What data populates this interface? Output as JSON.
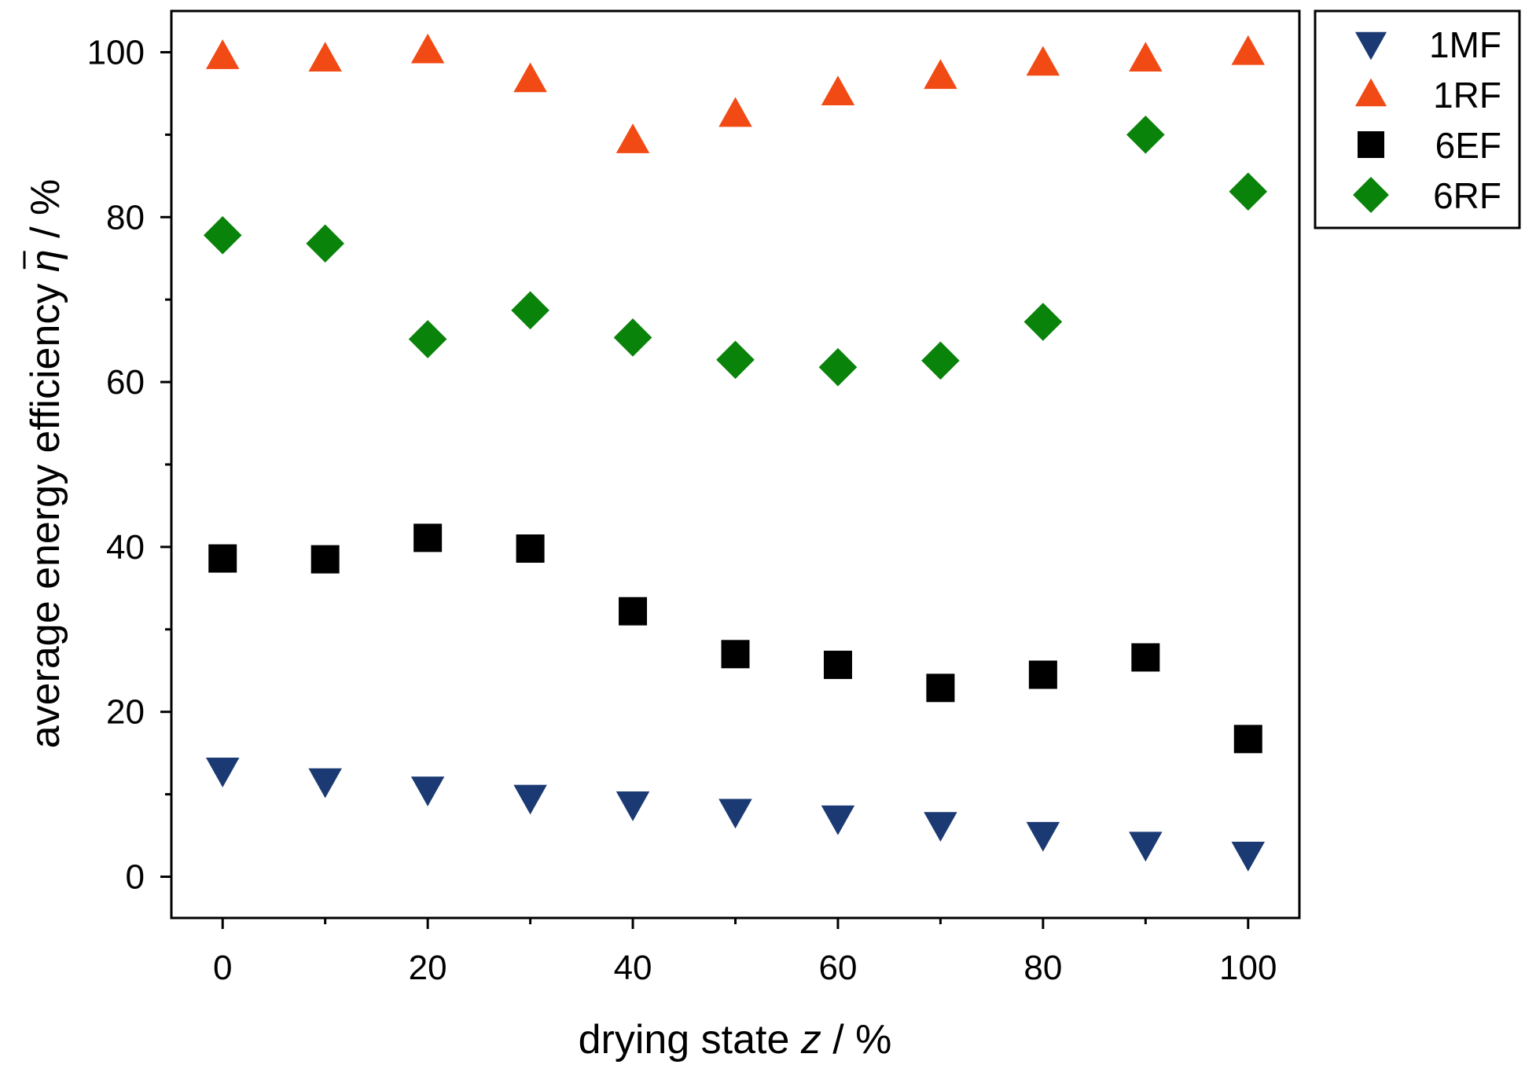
{
  "chart_data": {
    "type": "scatter",
    "title": "",
    "xlabel": {
      "prefix": "drying state ",
      "var": "z",
      "suffix": " / %"
    },
    "ylabel": {
      "prefix": "average energy efficiency ",
      "var": "η",
      "suffix": " / %"
    },
    "xlim": [
      -5,
      105
    ],
    "ylim": [
      -5,
      105
    ],
    "x_ticks": [
      0,
      20,
      40,
      60,
      80,
      100
    ],
    "x_tick_labels": [
      "0",
      "20",
      "40",
      "60",
      "80",
      "100"
    ],
    "x_minor_ticks": [
      10,
      30,
      50,
      70,
      90
    ],
    "y_ticks": [
      0,
      20,
      40,
      60,
      80,
      100
    ],
    "y_tick_labels": [
      "0",
      "20",
      "40",
      "60",
      "80",
      "100"
    ],
    "y_minor_ticks": [
      10,
      30,
      50,
      70,
      90
    ],
    "grid": false,
    "legend_position": "outside-top-right",
    "series": [
      {
        "name": "1MF",
        "marker": "triangle-down",
        "color": "#1b3a73",
        "x": [
          0,
          10,
          20,
          30,
          40,
          50,
          60,
          70,
          80,
          90,
          100
        ],
        "y": [
          12.9,
          11.6,
          10.6,
          9.6,
          8.8,
          7.9,
          7.1,
          6.3,
          5.1,
          3.9,
          2.7
        ]
      },
      {
        "name": "1RF",
        "marker": "triangle-up",
        "color": "#f24a14",
        "x": [
          0,
          10,
          20,
          30,
          40,
          50,
          60,
          70,
          80,
          90,
          100
        ],
        "y": [
          99.5,
          99.2,
          100.2,
          96.7,
          89.3,
          92.5,
          95.1,
          97.1,
          98.7,
          99.2,
          100.0
        ]
      },
      {
        "name": "6EF",
        "marker": "square",
        "color": "#000000",
        "x": [
          0,
          10,
          20,
          30,
          40,
          50,
          60,
          70,
          80,
          90,
          100
        ],
        "y": [
          38.6,
          38.5,
          41.1,
          39.8,
          32.2,
          27.0,
          25.7,
          22.9,
          24.5,
          26.6,
          16.7
        ]
      },
      {
        "name": "6RF",
        "marker": "diamond",
        "color": "#0a830a",
        "x": [
          0,
          10,
          20,
          30,
          40,
          50,
          60,
          70,
          80,
          90,
          100
        ],
        "y": [
          77.8,
          76.8,
          65.2,
          68.7,
          65.4,
          62.7,
          61.8,
          62.6,
          67.3,
          90.0,
          83.1
        ]
      }
    ]
  }
}
